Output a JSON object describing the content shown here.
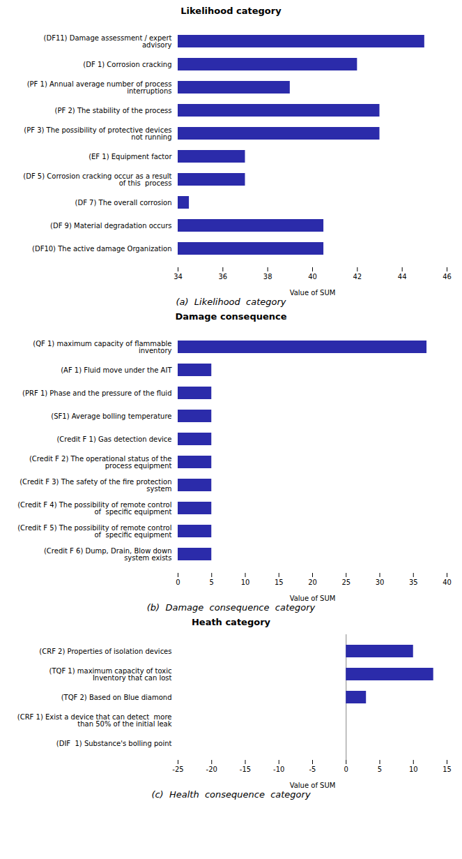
{
  "chart_data": [
    {
      "type": "bar",
      "orientation": "horizontal",
      "title": "Likelihood category",
      "xlabel": "Value of SUM",
      "caption": "(a)  Likelihood  category",
      "categories": [
        "(DF11) Damage assessment / expert\nadvisory",
        "(DF 1) Corrosion cracking",
        "(PF 1) Annual average number of process\ninterruptions",
        "(PF 2) The stability of the process",
        "(PF 3) The possibility of protective devices\nnot running",
        "(EF 1) Equipment factor",
        "(DF 5) Corrosion cracking occur as a result\nof this  process",
        "(DF 7) The overall corrosion",
        "(DF 9) Material degradation occurs",
        "(DF10) The active damage Organization"
      ],
      "values": [
        45,
        42,
        39,
        43,
        43,
        37,
        37,
        34.5,
        40.5,
        40.5
      ],
      "color": "#2b2baa",
      "xlim": [
        34,
        46
      ],
      "xticks": [
        34,
        36,
        38,
        40,
        42,
        44,
        46
      ],
      "grid": false
    },
    {
      "type": "bar",
      "orientation": "horizontal",
      "title": "Damage consequence",
      "xlabel": "Value of SUM",
      "caption": "(b)  Damage  consequence  category",
      "categories": [
        "(QF 1) maximum capacity of flammable\ninventory",
        "(AF 1) Fluid move under the AIT",
        "(PRF 1) Phase and the pressure of the fluid",
        "(SF1) Average bolling temperature",
        "(Credit F 1) Gas detection device",
        "(Credit F 2) The operational status of the\nprocess equipment",
        "(Credit F 3) The safety of the fire protection\nsystem",
        "(Credit F 4) The possibility of remote control\nof  specific equipment",
        "(Credit F 5) The possibility of remote control\nof  specific equipment",
        "(Credit F 6) Dump, Drain, Blow down\nsystem exists"
      ],
      "values": [
        37,
        5,
        5,
        5,
        5,
        5,
        5,
        5,
        5,
        5
      ],
      "color": "#2b2baa",
      "xlim": [
        0,
        40
      ],
      "xticks": [
        0,
        5,
        10,
        15,
        20,
        25,
        30,
        35,
        40
      ],
      "grid": false
    },
    {
      "type": "bar",
      "orientation": "horizontal",
      "title": "Heath category",
      "xlabel": "Value of SUM",
      "caption": "(c)  Health  consequence  category",
      "categories": [
        "(CRF 2) Properties of isolation devices",
        "(TQF 1) maximum capacity of toxic\nInventory that can lost",
        "(TQF 2) Based on Blue diamond",
        "(CRF 1) Exist a device that can detect  more\nthan 50% of the initial leak",
        "(DIF  1) Substance's bolling point"
      ],
      "values": [
        10,
        13,
        3,
        0,
        0
      ],
      "color": "#2b2baa",
      "xlim": [
        -25,
        15
      ],
      "xticks": [
        -25,
        -20,
        -15,
        -10,
        -5,
        0,
        5,
        10,
        15
      ],
      "grid": false
    }
  ]
}
